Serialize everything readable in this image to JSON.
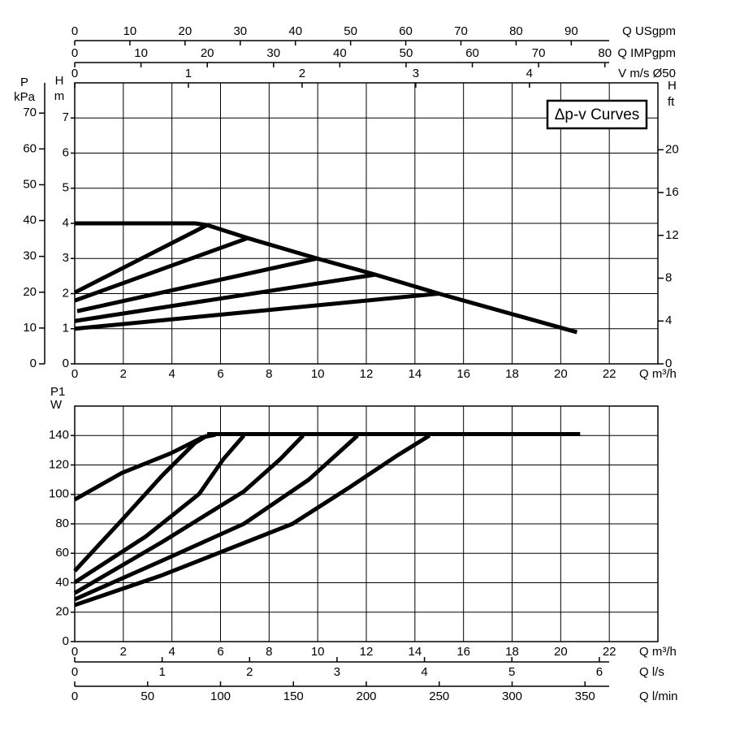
{
  "chart_data": [
    {
      "type": "line",
      "title": "Δp-v Curves",
      "x_label": "Q m³/h",
      "y_label_symbol": "H",
      "y_label_unit": "m",
      "xlim": [
        0,
        24
      ],
      "xticks": [
        0,
        2,
        4,
        6,
        8,
        10,
        12,
        14,
        16,
        18,
        20,
        22
      ],
      "ylim": [
        0,
        8
      ],
      "yticks": [
        0,
        1,
        2,
        3,
        4,
        5,
        6,
        7
      ],
      "grid": true,
      "series": [
        {
          "color": "#000000",
          "x": [
            0,
            4.95,
            5.45,
            7.12,
            9.97,
            12.37,
            14.98,
            20.67
          ],
          "values": [
            4.0,
            4.0,
            3.95,
            3.58,
            3.0,
            2.54,
            2.0,
            0.9
          ]
        },
        {
          "color": "#000000",
          "x": [
            0,
            5.45
          ],
          "values": [
            2.03,
            3.95
          ]
        },
        {
          "color": "#000000",
          "x": [
            0,
            7.12
          ],
          "values": [
            1.8,
            3.58
          ]
        },
        {
          "color": "#000000",
          "x": [
            0.1,
            9.97
          ],
          "values": [
            1.5,
            3.0
          ]
        },
        {
          "color": "#000000",
          "x": [
            0,
            12.37
          ],
          "values": [
            1.22,
            2.54
          ]
        },
        {
          "color": "#000000",
          "x": [
            0,
            14.98
          ],
          "values": [
            1.0,
            2.0
          ]
        }
      ],
      "secondary_axes": [
        {
          "side": "left",
          "label_symbol": "P",
          "label_unit": "kPa",
          "lim": [
            0,
            78.45
          ],
          "ticks": [
            0,
            10,
            20,
            30,
            40,
            50,
            60,
            70
          ]
        },
        {
          "side": "right",
          "label_symbol": "H",
          "label_unit": "ft",
          "lim": [
            0,
            26.25
          ],
          "ticks": [
            0,
            4,
            8,
            12,
            16,
            20
          ]
        },
        {
          "side": "top",
          "label": "Q USgpm",
          "lim": [
            0,
            105.7
          ],
          "ticks": [
            0,
            10,
            20,
            30,
            40,
            50,
            60,
            70,
            80,
            90
          ]
        },
        {
          "side": "top",
          "label": "Q IMPgpm",
          "lim": [
            0,
            88
          ],
          "ticks": [
            0,
            10,
            20,
            30,
            40,
            50,
            60,
            70,
            80
          ]
        },
        {
          "side": "top",
          "label": "V m/s Ø50",
          "lim": [
            0,
            5.13
          ],
          "ticks": [
            0,
            1,
            2,
            3,
            4
          ]
        }
      ]
    },
    {
      "type": "line",
      "x_label": "Q m³/h",
      "y_label_symbol": "P1",
      "y_label_unit": "W",
      "xlim": [
        0,
        24
      ],
      "xticks": [
        0,
        2,
        4,
        6,
        8,
        10,
        12,
        14,
        16,
        18,
        20,
        22
      ],
      "ylim": [
        0,
        160
      ],
      "yticks": [
        0,
        20,
        40,
        60,
        80,
        100,
        120,
        140
      ],
      "grid": true,
      "series": [
        {
          "color": "#000000",
          "x": [
            5.45,
            20.8
          ],
          "values": [
            141,
            141
          ]
        },
        {
          "color": "#000000",
          "x": [
            0,
            1.94,
            3.95,
            5.28,
            5.79
          ],
          "values": [
            96.5,
            114.6,
            127.9,
            138.9,
            140.5
          ]
        },
        {
          "color": "#000000",
          "x": [
            0,
            1.94,
            3.61,
            4.95,
            5.45
          ],
          "values": [
            48,
            82.6,
            113,
            135,
            140
          ]
        },
        {
          "color": "#000000",
          "x": [
            0,
            2.94,
            5.12,
            6.12,
            6.96
          ],
          "values": [
            40.2,
            71.6,
            100.3,
            124,
            140
          ]
        },
        {
          "color": "#000000",
          "x": [
            0,
            3.61,
            6.96,
            8.46,
            9.4
          ],
          "values": [
            33,
            67.8,
            102,
            124,
            140
          ]
        },
        {
          "color": "#000000",
          "x": [
            0,
            3.61,
            6.96,
            9.63,
            11.64
          ],
          "values": [
            28.7,
            55.1,
            80,
            110,
            140
          ]
        },
        {
          "color": "#000000",
          "x": [
            0,
            3.61,
            8.96,
            11.3,
            13.3,
            14.6
          ],
          "values": [
            24.8,
            45.2,
            80,
            104.7,
            126.7,
            140
          ]
        }
      ],
      "secondary_axes": [
        {
          "side": "bottom",
          "label": "Q l/s",
          "lim": [
            0,
            6.67
          ],
          "ticks": [
            0,
            1,
            2,
            3,
            4,
            5,
            6
          ]
        },
        {
          "side": "bottom",
          "label": "Q l/min",
          "lim": [
            0,
            400
          ],
          "ticks": [
            0,
            50,
            100,
            150,
            200,
            250,
            300,
            350
          ]
        }
      ]
    }
  ]
}
